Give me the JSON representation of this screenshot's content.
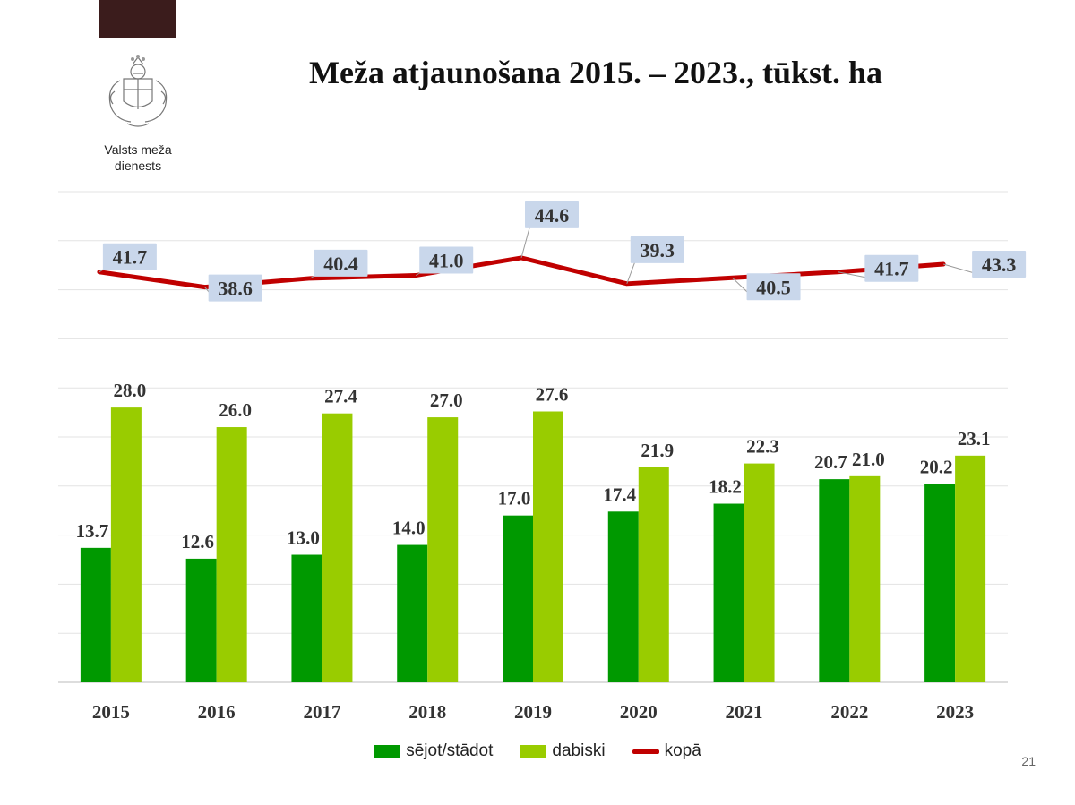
{
  "header": {
    "org_name_line1": "Valsts meža",
    "org_name_line2": "dienests",
    "page_number": "21"
  },
  "colors": {
    "sown": "#009900",
    "natural": "#99cc00",
    "total": "#c00000",
    "top_bar": "#3b1c1c",
    "label_box": "#c9d7eb"
  },
  "chart_data": {
    "type": "bar",
    "title": "Meža atjaunošana 2015. – 2023., tūkst. ha",
    "categories": [
      "2015",
      "2016",
      "2017",
      "2018",
      "2019",
      "2020",
      "2021",
      "2022",
      "2023"
    ],
    "series": [
      {
        "name": "sējot/stādot",
        "type": "bar",
        "values": [
          13.7,
          12.6,
          13.0,
          14.0,
          17.0,
          17.4,
          18.2,
          20.7,
          20.2
        ]
      },
      {
        "name": "dabiski",
        "type": "bar",
        "values": [
          28.0,
          26.0,
          27.4,
          27.0,
          27.6,
          21.9,
          22.3,
          21.0,
          23.1
        ]
      },
      {
        "name": "kopā",
        "type": "line",
        "values": [
          41.7,
          38.6,
          40.4,
          41.0,
          44.6,
          39.3,
          40.5,
          41.7,
          43.3
        ]
      }
    ],
    "ylim": [
      0,
      50
    ],
    "grid": true,
    "legend": "bottom",
    "xlabel": "",
    "ylabel": ""
  }
}
